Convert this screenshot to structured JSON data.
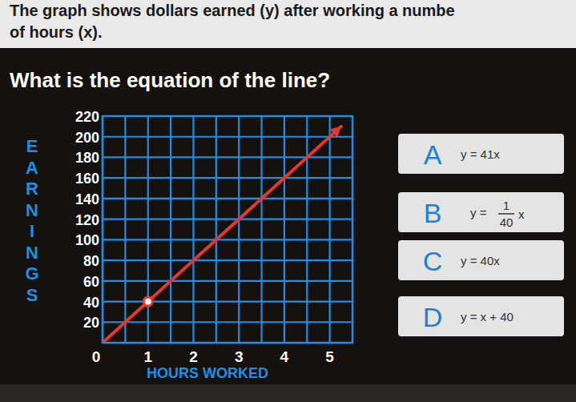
{
  "question": {
    "lines": [
      "The graph shows dollars earned (y) after working a numbe",
      "of hours (x)."
    ],
    "prompt": "What is the equation of the line?"
  },
  "choices": [
    {
      "letter": "A",
      "equation": "y = 41x"
    },
    {
      "letter": "B",
      "lhs": "y =",
      "numerator": "1",
      "denominator": "40",
      "rhs": "x"
    },
    {
      "letter": "C",
      "equation": "y = 40x"
    },
    {
      "letter": "D",
      "equation": "y = x + 40"
    }
  ],
  "chart_data": {
    "type": "line",
    "x_label": "HOURS WORKED",
    "y_label": "EARNINGS",
    "series": [
      {
        "type": "line",
        "color": "#e8372c",
        "x": [
          0,
          5.25
        ],
        "values": [
          0,
          210
        ]
      },
      {
        "type": "scatter",
        "marker": "circle",
        "color": "#e8372c",
        "x": [
          1
        ],
        "values": [
          40
        ]
      }
    ],
    "xlim": [
      0,
      5.5
    ],
    "xticks": [
      0,
      1,
      2,
      3,
      4,
      5
    ],
    "ylim": [
      0,
      220
    ],
    "yticks": [
      20,
      40,
      60,
      80,
      100,
      120,
      140,
      160,
      180,
      200,
      220
    ],
    "grid": true
  }
}
